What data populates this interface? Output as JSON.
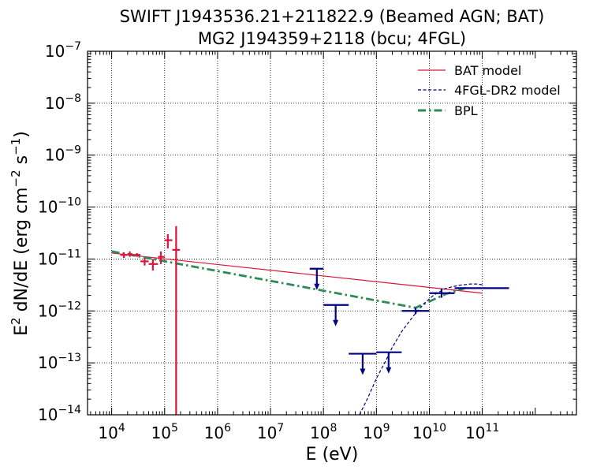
{
  "chart_data": {
    "type": "scatter",
    "title_line1": "SWIFT J1943536.21+211822.9 (Beamed AGN; BAT)",
    "title_line2": "MG2 J194359+2118 (bcu; 4FGL)",
    "xlabel": "E (eV)",
    "ylabel": {
      "base": "E",
      "base_sup": "2",
      "mid": " dN/dE (erg cm",
      "mid_sup": "−2",
      "s": " s",
      "s_sup": "−1",
      "close": ")"
    },
    "xscale": "log",
    "yscale": "log",
    "xlim": [
      3500,
      6000000000000
    ],
    "ylim": [
      1e-14,
      1e-07
    ],
    "grid": true,
    "legend_position": "top-right",
    "x_ticks": [
      {
        "exp": 4,
        "base": "10",
        "sup": "4"
      },
      {
        "exp": 5,
        "base": "10",
        "sup": "5"
      },
      {
        "exp": 6,
        "base": "10",
        "sup": "6"
      },
      {
        "exp": 7,
        "base": "10",
        "sup": "7"
      },
      {
        "exp": 8,
        "base": "10",
        "sup": "8"
      },
      {
        "exp": 9,
        "base": "10",
        "sup": "9"
      },
      {
        "exp": 10,
        "base": "10",
        "sup": "10"
      },
      {
        "exp": 11,
        "base": "10",
        "sup": "11"
      }
    ],
    "y_ticks": [
      {
        "exp": -14,
        "base": "10",
        "sup": "−14"
      },
      {
        "exp": -13,
        "base": "10",
        "sup": "−13"
      },
      {
        "exp": -12,
        "base": "10",
        "sup": "−12"
      },
      {
        "exp": -11,
        "base": "10",
        "sup": "−11"
      },
      {
        "exp": -10,
        "base": "10",
        "sup": "−10"
      },
      {
        "exp": -9,
        "base": "10",
        "sup": "−9"
      },
      {
        "exp": -8,
        "base": "10",
        "sup": "−8"
      },
      {
        "exp": -7,
        "base": "10",
        "sup": "−7"
      }
    ],
    "legend": [
      {
        "label": "BAT model",
        "color": "#dc143c",
        "style": "solid"
      },
      {
        "label": "4FGL-DR2 model",
        "color": "#000080",
        "style": "dashed"
      },
      {
        "label": "BPL",
        "color": "#2e8b57",
        "style": "dashdot"
      }
    ],
    "colors": {
      "bat": "#dc143c",
      "fermi": "#000080",
      "bpl": "#2e8b57"
    },
    "bat_model": {
      "x": [
        10000,
        100000000000
      ],
      "y": [
        1.3e-11,
        2.2e-12
      ]
    },
    "bpl_model": {
      "x": [
        10000,
        5500000000,
        20000000000,
        50000000000
      ],
      "y": [
        1.4e-11,
        1.15e-12,
        2.1e-12,
        2.8e-12
      ]
    },
    "fermi_model": {
      "x": [
        480000000,
        700000000,
        1000000000,
        1500000000,
        2000000000,
        3000000000,
        5000000000,
        8000000000,
        12000000000,
        20000000000,
        35000000000,
        60000000000,
        80000000000,
        100000000000
      ],
      "y": [
        1e-14,
        2.2e-14,
        5e-14,
        1.1e-13,
        2e-13,
        4e-13,
        8e-13,
        1.4e-12,
        2e-12,
        2.7e-12,
        3.1e-12,
        3.3e-12,
        3.3e-12,
        3.2e-12
      ]
    },
    "bat_points": [
      {
        "x": 17000,
        "y": 1.2e-11,
        "xlo": 14500,
        "xhi": 20000,
        "ylo": 1.05e-11,
        "yhi": 1.35e-11
      },
      {
        "x": 22000,
        "y": 1.25e-11,
        "xlo": 20000,
        "xhi": 24500,
        "ylo": 1.1e-11,
        "yhi": 1.4e-11
      },
      {
        "x": 30000,
        "y": 1.2e-11,
        "xlo": 24500,
        "xhi": 35000,
        "ylo": 1.1e-11,
        "yhi": 1.3e-11
      },
      {
        "x": 42000,
        "y": 9e-12,
        "xlo": 35000,
        "xhi": 50000,
        "ylo": 7.5e-12,
        "yhi": 1.05e-11
      },
      {
        "x": 60000,
        "y": 8e-12,
        "xlo": 50000,
        "xhi": 75000,
        "ylo": 6e-12,
        "yhi": 1e-11
      },
      {
        "x": 85000,
        "y": 1.1e-11,
        "xlo": 75000,
        "xhi": 100000,
        "ylo": 8e-12,
        "yhi": 1.4e-11
      },
      {
        "x": 115000,
        "y": 2.3e-11,
        "xlo": 100000,
        "xhi": 140000,
        "ylo": 1.6e-11,
        "yhi": 3e-11
      },
      {
        "x": 165000,
        "y": 1.5e-11,
        "xlo": 140000,
        "xhi": 195000,
        "ylo": 1e-14,
        "yhi": 4.3e-11
      }
    ],
    "fermi_upper_limits": [
      {
        "x": 75000000,
        "y": 6.5e-12,
        "xlo": 55000000,
        "xhi": 100000000
      },
      {
        "x": 170000000,
        "y": 1.3e-12,
        "xlo": 100000000,
        "xhi": 300000000
      },
      {
        "x": 550000000,
        "y": 1.5e-13,
        "xlo": 300000000,
        "xhi": 1000000000
      },
      {
        "x": 1700000000,
        "y": 1.6e-13,
        "xlo": 1000000000,
        "xhi": 3000000000
      }
    ],
    "fermi_points": [
      {
        "x": 5500000000,
        "y": 1e-12,
        "xlo": 3000000000,
        "xhi": 10000000000,
        "ylo": 8.7e-13,
        "yhi": 1.15e-12
      },
      {
        "x": 17000000000,
        "y": 2.2e-12,
        "xlo": 10000000000,
        "xhi": 30000000000,
        "ylo": 1.8e-12,
        "yhi": 2.7e-12
      },
      {
        "x": 100000000000,
        "y": 2.75e-12,
        "xlo": 30000000000,
        "xhi": 320000000000,
        "ylo": 2.75e-12,
        "yhi": 2.75e-12
      }
    ]
  }
}
